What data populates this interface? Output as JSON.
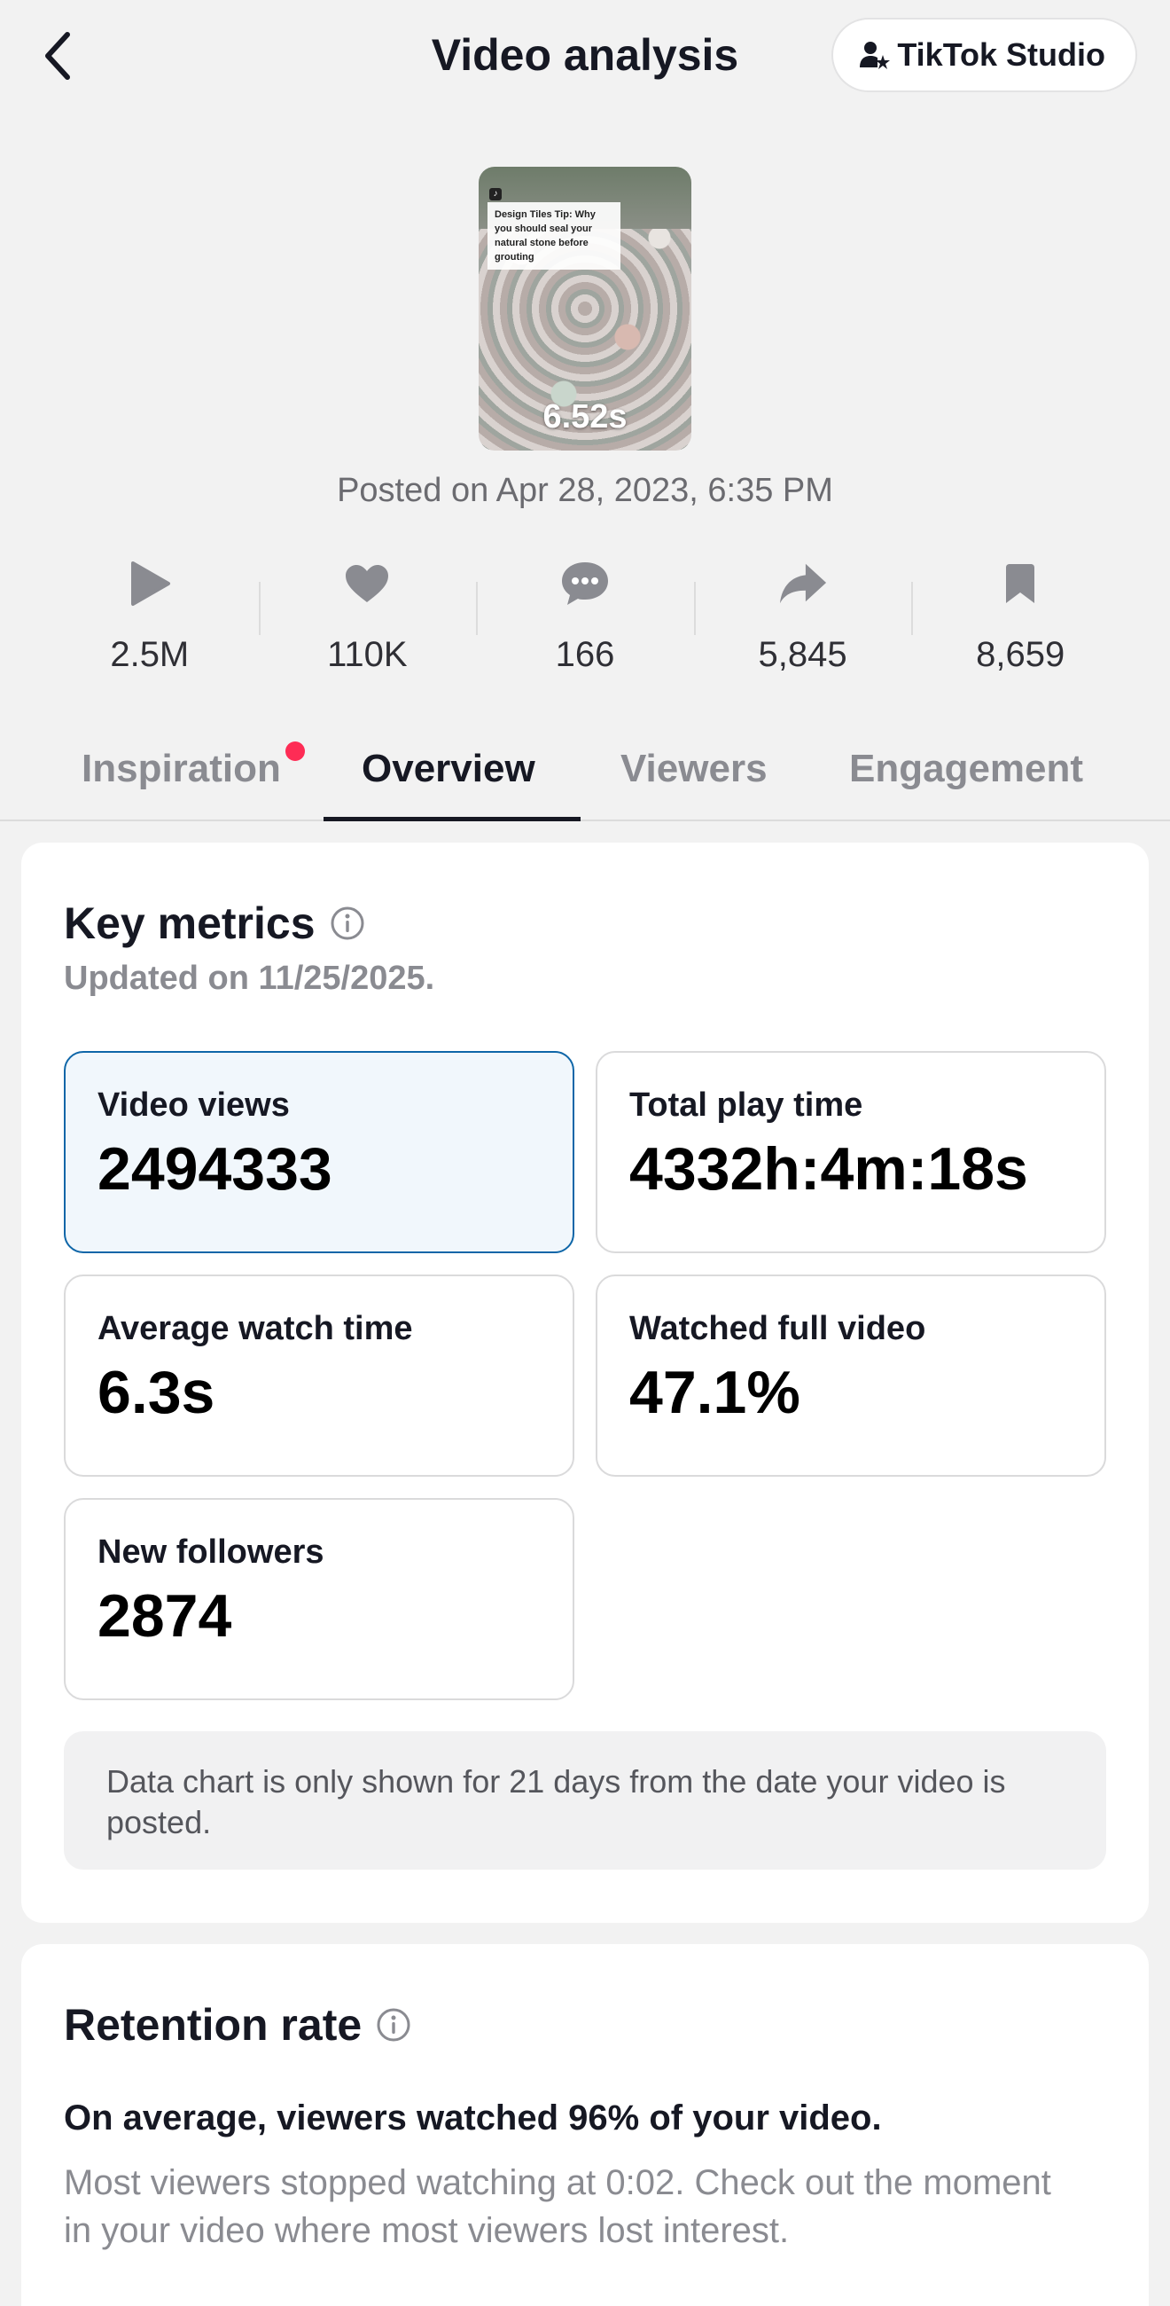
{
  "header": {
    "title": "Video analysis",
    "studio_button": "TikTok Studio"
  },
  "video": {
    "duration": "6.52s",
    "caption": "Design Tiles Tip: Why you should seal your natural stone before grouting",
    "posted": "Posted on Apr 28, 2023, 6:35 PM"
  },
  "stats": {
    "plays": "2.5M",
    "likes": "110K",
    "comments": "166",
    "shares": "5,845",
    "saves": "8,659"
  },
  "tabs": {
    "inspiration": "Inspiration",
    "overview": "Overview",
    "viewers": "Viewers",
    "engagement": "Engagement",
    "active": "Overview"
  },
  "key_metrics": {
    "title": "Key metrics",
    "updated": "Updated on 11/25/2025.",
    "video_views_label": "Video views",
    "video_views_value": "2494333",
    "total_play_label": "Total play time",
    "total_play_value": "4332h:4m:18s",
    "avg_watch_label": "Average watch time",
    "avg_watch_value": "6.3s",
    "full_video_label": "Watched full video",
    "full_video_value": "47.1%",
    "followers_label": "New followers",
    "followers_value": "2874",
    "note": "Data chart is only shown for 21 days from the date your video is posted."
  },
  "retention": {
    "title": "Retention rate",
    "summary": "On average, viewers watched 96% of your video.",
    "detail": "Most viewers stopped watching at 0:02. Check out the moment in your video where most viewers lost interest."
  },
  "colors": {
    "accent_dot": "#fe2c55",
    "selected_border": "#0e66a8",
    "selected_bg": "#f1f7fc",
    "background": "#f2f2f2"
  }
}
